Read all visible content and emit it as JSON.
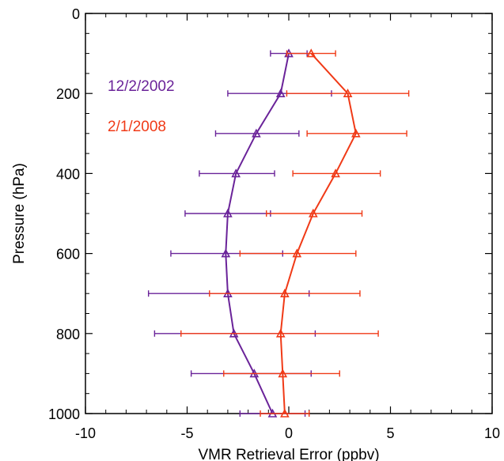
{
  "chart_data": {
    "type": "line",
    "title": "",
    "xlabel": "VMR Retrieval Error (ppbv)",
    "ylabel": "Pressure (hPa)",
    "xlim": [
      -10,
      10
    ],
    "ylim": [
      1000,
      0
    ],
    "y_inverted": true,
    "x_ticks": [
      -10,
      -5,
      0,
      5,
      10
    ],
    "y_ticks": [
      0,
      200,
      400,
      600,
      800,
      1000
    ],
    "grid": false,
    "legend_placement": "top-left",
    "marker": "triangle",
    "series": [
      {
        "name": "12/2/2002",
        "color": "#6a2399",
        "points": [
          {
            "pressure": 100,
            "x": 0.0,
            "xmin": -0.9,
            "xmax": 0.9
          },
          {
            "pressure": 200,
            "x": -0.4,
            "xmin": -3.0,
            "xmax": 2.1
          },
          {
            "pressure": 300,
            "x": -1.6,
            "xmin": -3.6,
            "xmax": 0.5
          },
          {
            "pressure": 400,
            "x": -2.6,
            "xmin": -4.4,
            "xmax": -0.7
          },
          {
            "pressure": 500,
            "x": -3.0,
            "xmin": -5.1,
            "xmax": -0.9
          },
          {
            "pressure": 600,
            "x": -3.1,
            "xmin": -5.8,
            "xmax": -0.3
          },
          {
            "pressure": 700,
            "x": -3.0,
            "xmin": -6.9,
            "xmax": 1.0
          },
          {
            "pressure": 800,
            "x": -2.7,
            "xmin": -6.6,
            "xmax": 1.3
          },
          {
            "pressure": 900,
            "x": -1.7,
            "xmin": -4.8,
            "xmax": 1.1
          },
          {
            "pressure": 1000,
            "x": -0.8,
            "xmin": -2.4,
            "xmax": 0.8
          }
        ]
      },
      {
        "name": "2/1/2008",
        "color": "#f03a17",
        "points": [
          {
            "pressure": 100,
            "x": 1.1,
            "xmin": -0.1,
            "xmax": 2.3
          },
          {
            "pressure": 200,
            "x": 2.9,
            "xmin": -0.1,
            "xmax": 5.9
          },
          {
            "pressure": 300,
            "x": 3.3,
            "xmin": 0.9,
            "xmax": 5.8
          },
          {
            "pressure": 400,
            "x": 2.3,
            "xmin": 0.2,
            "xmax": 4.5
          },
          {
            "pressure": 500,
            "x": 1.2,
            "xmin": -1.1,
            "xmax": 3.6
          },
          {
            "pressure": 600,
            "x": 0.4,
            "xmin": -2.4,
            "xmax": 3.3
          },
          {
            "pressure": 700,
            "x": -0.2,
            "xmin": -3.9,
            "xmax": 3.5
          },
          {
            "pressure": 800,
            "x": -0.4,
            "xmin": -5.3,
            "xmax": 4.4
          },
          {
            "pressure": 900,
            "x": -0.3,
            "xmin": -3.2,
            "xmax": 2.5
          },
          {
            "pressure": 1000,
            "x": -0.2,
            "xmin": -1.4,
            "xmax": 1.0
          }
        ]
      }
    ]
  }
}
